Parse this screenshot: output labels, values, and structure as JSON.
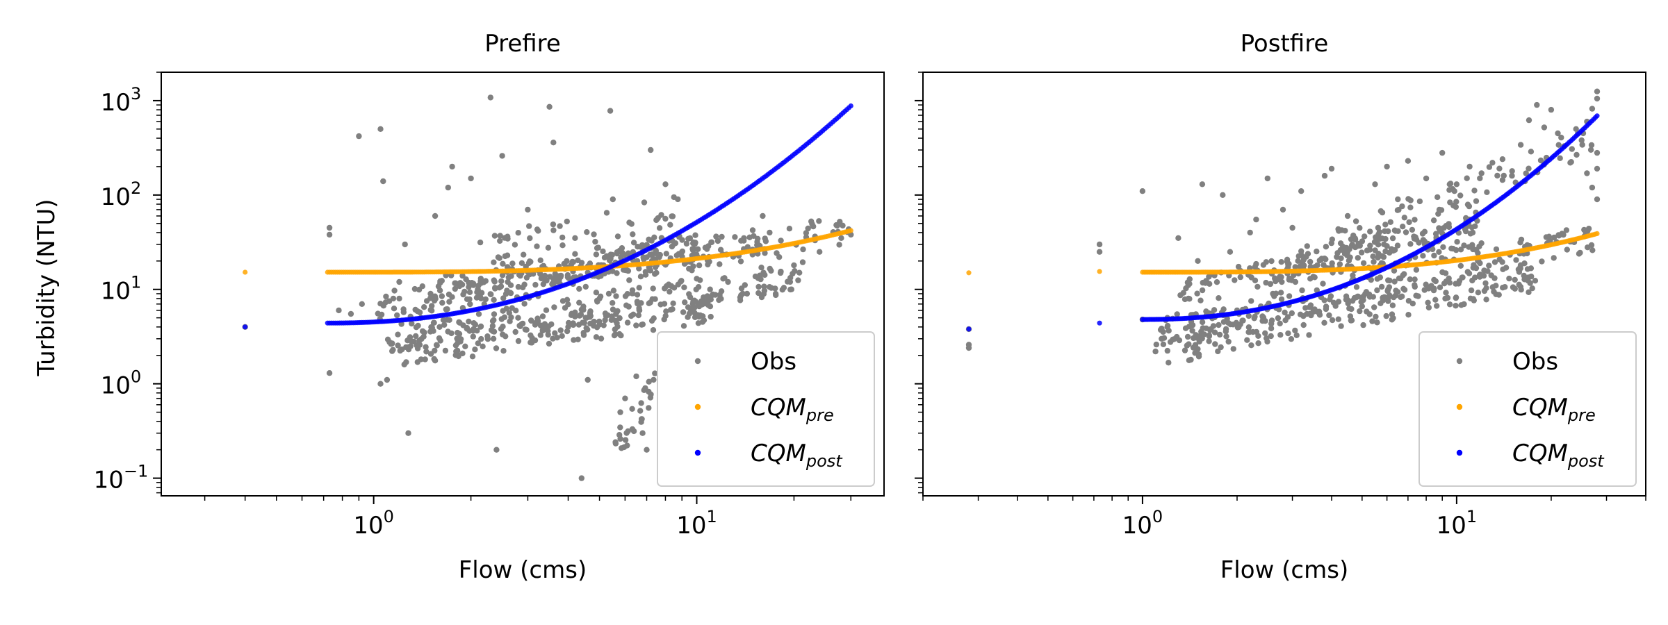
{
  "figure": {
    "ylabel": "Turbidity (NTU)",
    "shared_y": true
  },
  "colors": {
    "obs": "#808080",
    "cqm_pre": "#FFA500",
    "cqm_post": "#0000FF"
  },
  "chart_data": [
    {
      "type": "scatter",
      "title": "Prefire",
      "xlabel": "Flow (cms)",
      "ylabel": "Turbidity (NTU)",
      "xscale": "log",
      "yscale": "log",
      "xlim": [
        0.22,
        38
      ],
      "ylim": [
        0.065,
        2000
      ],
      "x_ticks": [
        {
          "base": "10",
          "exp": "0"
        },
        {
          "base": "10",
          "exp": "1"
        }
      ],
      "y_ticks": [
        {
          "base": "10",
          "exp": "−1"
        },
        {
          "base": "10",
          "exp": "0"
        },
        {
          "base": "10",
          "exp": "1"
        },
        {
          "base": "10",
          "exp": "2"
        },
        {
          "base": "10",
          "exp": "3"
        }
      ],
      "grid": false,
      "legend_position": "lower-right",
      "legend": [
        {
          "key": "obs",
          "label": "Obs",
          "sub": ""
        },
        {
          "key": "cqm_pre",
          "label": "CQM",
          "sub": "pre"
        },
        {
          "key": "cqm_post",
          "label": "CQM",
          "sub": "post"
        }
      ],
      "cqm_pre_curve": {
        "x_start": 0.72,
        "x_end": 30,
        "y_start": 15.2,
        "y_end": 42,
        "isolated_point": [
          0.4,
          15.2
        ]
      },
      "cqm_post_curve": {
        "x_start": 0.72,
        "x_end": 30,
        "y_start": 4.4,
        "y_end": 880,
        "isolated_point": [
          0.4,
          4.0
        ]
      },
      "obs_points": [
        [
          0.4,
          4.0
        ],
        [
          0.73,
          45
        ],
        [
          0.73,
          38
        ],
        [
          0.73,
          1.3
        ],
        [
          0.78,
          6
        ],
        [
          0.85,
          5.5
        ],
        [
          0.9,
          420
        ],
        [
          0.92,
          7
        ],
        [
          1.05,
          500
        ],
        [
          1.05,
          1.0
        ],
        [
          1.07,
          140
        ],
        [
          1.1,
          1.1
        ],
        [
          1.15,
          8
        ],
        [
          1.2,
          12
        ],
        [
          1.25,
          30
        ],
        [
          1.28,
          0.3
        ],
        [
          1.3,
          2.5
        ],
        [
          1.35,
          3.2
        ],
        [
          1.4,
          5
        ],
        [
          1.5,
          9
        ],
        [
          1.55,
          60
        ],
        [
          1.6,
          4
        ],
        [
          1.7,
          120
        ],
        [
          1.75,
          200
        ],
        [
          1.8,
          2.2
        ],
        [
          1.9,
          6
        ],
        [
          2.0,
          150
        ],
        [
          2.1,
          10
        ],
        [
          2.2,
          7
        ],
        [
          2.3,
          1080
        ],
        [
          2.35,
          3
        ],
        [
          2.4,
          0.2
        ],
        [
          2.5,
          260
        ],
        [
          2.6,
          12
        ],
        [
          2.8,
          5
        ],
        [
          3.0,
          70
        ],
        [
          3.2,
          9
        ],
        [
          3.5,
          860
        ],
        [
          3.6,
          360
        ],
        [
          3.8,
          14
        ],
        [
          4.0,
          4
        ],
        [
          4.2,
          35
        ],
        [
          4.4,
          0.1
        ],
        [
          4.6,
          1.1
        ],
        [
          5.0,
          8
        ],
        [
          5.4,
          780
        ],
        [
          5.5,
          90
        ],
        [
          5.8,
          0.5
        ],
        [
          6.0,
          0.7
        ],
        [
          6.5,
          1.2
        ],
        [
          6.8,
          0.3
        ],
        [
          7.0,
          0.2
        ],
        [
          7.2,
          300
        ],
        [
          7.5,
          15
        ],
        [
          8.0,
          130
        ],
        [
          8.5,
          95
        ],
        [
          9.0,
          25
        ],
        [
          10.0,
          13
        ],
        [
          11.0,
          10
        ],
        [
          12.5,
          12
        ],
        [
          14.0,
          35
        ],
        [
          16.0,
          60
        ],
        [
          18.0,
          22
        ],
        [
          20.0,
          18
        ],
        [
          24.0,
          25
        ],
        [
          28.0,
          35
        ],
        [
          30.0,
          38
        ]
      ],
      "obs_bands": [
        {
          "x_start": 1.0,
          "x_end": 30,
          "y_start": 6.2,
          "y_end": 44,
          "n": 220
        },
        {
          "x_start": 1.1,
          "x_end": 22,
          "y_start": 3.0,
          "y_end": 14,
          "n": 200
        },
        {
          "x_start": 1.2,
          "x_end": 12,
          "y_start": 2.2,
          "y_end": 6.5,
          "n": 170
        },
        {
          "x_start": 1.5,
          "x_end": 10,
          "y_start": 9.5,
          "y_end": 30,
          "n": 160
        },
        {
          "x_start": 2.0,
          "x_end": 9,
          "y_start": 25,
          "y_end": 70,
          "n": 45
        },
        {
          "x_start": 5.5,
          "x_end": 7.5,
          "y_start": 0.18,
          "y_end": 1.0,
          "n": 28
        }
      ]
    },
    {
      "type": "scatter",
      "title": "Postfire",
      "xlabel": "Flow (cms)",
      "ylabel": "",
      "xscale": "log",
      "yscale": "log",
      "xlim": [
        0.2,
        40
      ],
      "ylim": [
        0.065,
        2000
      ],
      "x_ticks": [
        {
          "base": "10",
          "exp": "0"
        },
        {
          "base": "10",
          "exp": "1"
        }
      ],
      "y_ticks": [],
      "grid": false,
      "legend_position": "lower-right",
      "legend": [
        {
          "key": "obs",
          "label": "Obs",
          "sub": ""
        },
        {
          "key": "cqm_pre",
          "label": "CQM",
          "sub": "pre"
        },
        {
          "key": "cqm_post",
          "label": "CQM",
          "sub": "post"
        }
      ],
      "cqm_pre_curve": {
        "x_start": 1.0,
        "x_end": 28,
        "y_start": 15.2,
        "y_end": 39,
        "isolated_point": [
          0.28,
          15.0
        ],
        "isolated_point_2": [
          0.73,
          15.5
        ]
      },
      "cqm_post_curve": {
        "x_start": 1.0,
        "x_end": 28,
        "y_start": 4.8,
        "y_end": 690,
        "isolated_point": [
          0.28,
          3.8
        ],
        "isolated_point_2": [
          0.73,
          4.4
        ]
      },
      "obs_points": [
        [
          0.28,
          2.6
        ],
        [
          0.28,
          2.4
        ],
        [
          0.28,
          3.8
        ],
        [
          0.73,
          30
        ],
        [
          0.73,
          25
        ],
        [
          1.0,
          110
        ],
        [
          1.0,
          4.8
        ],
        [
          1.1,
          2.2
        ],
        [
          1.15,
          3
        ],
        [
          1.2,
          5
        ],
        [
          1.3,
          35
        ],
        [
          1.4,
          8
        ],
        [
          1.5,
          20
        ],
        [
          1.55,
          130
        ],
        [
          1.6,
          12
        ],
        [
          1.7,
          3.5
        ],
        [
          1.8,
          100
        ],
        [
          1.9,
          25
        ],
        [
          2.0,
          6
        ],
        [
          2.2,
          40
        ],
        [
          2.3,
          55
        ],
        [
          2.5,
          150
        ],
        [
          2.6,
          9
        ],
        [
          2.8,
          70
        ],
        [
          3.0,
          45
        ],
        [
          3.2,
          110
        ],
        [
          3.5,
          6
        ],
        [
          3.8,
          160
        ],
        [
          4.0,
          190
        ],
        [
          4.5,
          60
        ],
        [
          5.0,
          8
        ],
        [
          5.5,
          130
        ],
        [
          6.0,
          200
        ],
        [
          6.5,
          90
        ],
        [
          7.0,
          230
        ],
        [
          8.0,
          150
        ],
        [
          9.0,
          280
        ],
        [
          10.0,
          130
        ],
        [
          11.0,
          200
        ],
        [
          12.0,
          170
        ],
        [
          13.0,
          220
        ],
        [
          14.0,
          240
        ],
        [
          15.0,
          160
        ],
        [
          16.0,
          340
        ],
        [
          18.0,
          900
        ],
        [
          20.0,
          800
        ],
        [
          22.0,
          330
        ],
        [
          24.0,
          500
        ],
        [
          25.0,
          380
        ],
        [
          26.0,
          600
        ],
        [
          27.0,
          820
        ],
        [
          28.0,
          1250
        ],
        [
          28.0,
          1050
        ],
        [
          28.0,
          280
        ],
        [
          28.0,
          190
        ],
        [
          28.0,
          90
        ],
        [
          26.0,
          170
        ],
        [
          27.0,
          120
        ],
        [
          23.0,
          220
        ],
        [
          21.0,
          450
        ],
        [
          19.0,
          520
        ],
        [
          17.0,
          620
        ],
        [
          16.5,
          140
        ],
        [
          9.5,
          130
        ]
      ],
      "obs_bands": [
        {
          "x_start": 1.1,
          "x_end": 28,
          "y_start": 3.4,
          "y_end": 36,
          "n": 200
        },
        {
          "x_start": 1.2,
          "x_end": 18,
          "y_start": 2.3,
          "y_end": 14,
          "n": 210
        },
        {
          "x_start": 1.3,
          "x_end": 12,
          "y_start": 9.0,
          "y_end": 40,
          "n": 170
        },
        {
          "x_start": 2.5,
          "x_end": 12,
          "y_start": 15,
          "y_end": 70,
          "n": 80
        },
        {
          "x_start": 4.0,
          "x_end": 28,
          "y_start": 30,
          "y_end": 400,
          "n": 70
        }
      ]
    }
  ]
}
